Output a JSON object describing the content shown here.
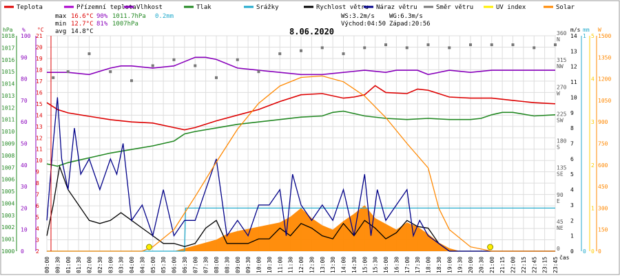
{
  "chart_data": {
    "type": "line",
    "title": "8.06.2020",
    "legend": [
      {
        "name": "Teplota",
        "color": "#dd0000"
      },
      {
        "name": "Přízemní teplota",
        "color": "#aa00cc"
      },
      {
        "name": "Vlhkost",
        "color": "#8800bb"
      },
      {
        "name": "Tlak",
        "color": "#228822"
      },
      {
        "name": "Srážky",
        "color": "#22aacc"
      },
      {
        "name": "Rychlost větru",
        "color": "#000000"
      },
      {
        "name": "Náraz větru",
        "color": "#000088"
      },
      {
        "name": "Směr větru",
        "color": "#777777"
      },
      {
        "name": "UV index",
        "color": "#ffee00"
      },
      {
        "name": "Solar",
        "color": "#ff8800"
      }
    ],
    "stats": {
      "max": {
        "label": "max",
        "temp": "16.6°C",
        "hum": "90%",
        "press": "1011.7hPa",
        "rain": "0.2mm"
      },
      "min": {
        "label": "min",
        "temp": "12.7°C",
        "hum": "81%",
        "press": "1007hPa"
      },
      "avg": {
        "label": "avg",
        "temp": "14.8°C"
      }
    },
    "wind_info": {
      "ws": "WS:3.2m/s",
      "wg": "WG:6.3m/s",
      "sunrise": "Východ:04:50",
      "sunset": "Západ:20:56"
    },
    "axes": {
      "hpa": {
        "unit": "hPa",
        "ticks": [
          "1000",
          "1001",
          "1002",
          "1003",
          "1004",
          "1005",
          "1006",
          "1007",
          "1008",
          "1009",
          "1010",
          "1011",
          "1012",
          "1013",
          "1014",
          "1015",
          "1016",
          "1017",
          "1018"
        ]
      },
      "pct": {
        "unit": "%",
        "ticks": [
          "0",
          "10",
          "20",
          "30",
          "40",
          "50",
          "60",
          "70",
          "80",
          "90",
          "100"
        ]
      },
      "degc": {
        "unit": "°C",
        "ticks": [
          "2",
          "3",
          "4",
          "5",
          "6",
          "7",
          "8",
          "9",
          "10",
          "11",
          "12",
          "13",
          "14",
          "15",
          "16",
          "17",
          "18",
          "19",
          "20",
          "21"
        ]
      },
      "dir": {
        "labels": [
          {
            "v": "360",
            "d": "N"
          },
          {
            "v": "315",
            "d": "NW"
          },
          {
            "v": "270",
            "d": "W"
          },
          {
            "v": "225",
            "d": "SW"
          },
          {
            "v": "180",
            "d": "S"
          },
          {
            "v": "135",
            "d": "SE"
          },
          {
            "v": "90",
            "d": "E"
          },
          {
            "v": "45",
            "d": "NE"
          },
          {
            "v": "0",
            "d": ""
          }
        ]
      },
      "ms": {
        "unit": "m/s",
        "ticks": [
          "0",
          "1",
          "2",
          "3",
          "4",
          "5",
          "6",
          "7",
          "8",
          "9",
          "10",
          "11",
          "12",
          "13",
          "14"
        ]
      },
      "mm": {
        "unit": "mm",
        "ticks": [
          "0",
          "1"
        ]
      },
      "uv": {
        "ticks": [
          "0",
          "1",
          "2",
          "3",
          "4",
          "5"
        ]
      },
      "solar": {
        "unit": "W",
        "ticks": [
          "0",
          "150",
          "300",
          "450",
          "600",
          "750",
          "900",
          "1050",
          "1200",
          "1350",
          "1500"
        ]
      },
      "xlabel": "čas",
      "xticks": [
        "00:00",
        "00:30",
        "01:00",
        "01:30",
        "02:00",
        "02:30",
        "03:00",
        "03:30",
        "04:00",
        "04:30",
        "05:00",
        "05:30",
        "06:00",
        "06:30",
        "07:00",
        "07:30",
        "08:00",
        "08:30",
        "09:00",
        "09:30",
        "10:00",
        "10:30",
        "11:00",
        "11:30",
        "12:00",
        "12:30",
        "13:00",
        "13:30",
        "14:00",
        "14:30",
        "15:00",
        "15:30",
        "16:00",
        "16:30",
        "17:00",
        "17:30",
        "18:00",
        "18:30",
        "19:00",
        "19:30",
        "20:00",
        "20:30",
        "21:00",
        "21:15",
        "22:00",
        "22:15",
        "22:45",
        "23:15",
        "23:45"
      ]
    },
    "series": [
      {
        "name": "Teplota",
        "unit": "°C",
        "x": [
          0,
          0.5,
          1,
          2,
          3,
          4,
          5,
          6,
          6.5,
          7,
          8,
          9,
          10,
          11,
          12,
          13,
          14,
          14.5,
          15,
          15.5,
          16,
          17,
          17.5,
          18,
          19,
          20,
          21,
          22,
          23,
          24
        ],
        "values": [
          15.1,
          14.5,
          14.2,
          13.9,
          13.6,
          13.4,
          13.3,
          12.9,
          12.7,
          12.9,
          13.5,
          14.0,
          14.5,
          15.2,
          15.8,
          15.9,
          15.5,
          15.6,
          15.8,
          16.6,
          16.0,
          15.9,
          16.3,
          16.2,
          15.6,
          15.5,
          15.5,
          15.3,
          15.1,
          15.0
        ]
      },
      {
        "name": "Vlhkost",
        "unit": "%",
        "x": [
          0,
          1,
          2,
          3,
          3.5,
          4,
          5,
          6,
          7,
          7.5,
          8,
          9,
          10,
          11,
          12,
          13,
          14,
          15,
          16,
          16.5,
          17,
          17.5,
          18,
          19,
          20,
          21,
          22,
          23,
          24
        ],
        "values": [
          83,
          83,
          82,
          85,
          86,
          86,
          85,
          86,
          90,
          90,
          89,
          85,
          84,
          83,
          82,
          82,
          83,
          84,
          83,
          84,
          84,
          84,
          82,
          84,
          83,
          84,
          84,
          84,
          84
        ]
      },
      {
        "name": "Tlak",
        "unit": "hPa",
        "x": [
          0,
          0.5,
          1,
          2,
          3,
          4,
          5,
          6,
          6.5,
          7,
          8,
          9,
          10,
          11,
          12,
          13,
          13.5,
          14,
          15,
          16,
          17,
          18,
          19,
          20,
          20.5,
          21,
          21.5,
          22,
          23,
          24
        ],
        "values": [
          1007.3,
          1007.1,
          1007.4,
          1007.8,
          1008.2,
          1008.5,
          1008.8,
          1009.2,
          1009.8,
          1010.0,
          1010.3,
          1010.6,
          1010.8,
          1011.0,
          1011.2,
          1011.3,
          1011.6,
          1011.7,
          1011.3,
          1011.1,
          1011.0,
          1011.1,
          1011.0,
          1011.0,
          1011.1,
          1011.4,
          1011.6,
          1011.6,
          1011.3,
          1011.4
        ]
      },
      {
        "name": "Srážky",
        "unit": "mm",
        "x": [
          0,
          6.5,
          6.55,
          24
        ],
        "values": [
          0,
          0,
          0.2,
          0.2
        ]
      },
      {
        "name": "Rychlost větru",
        "unit": "m/s",
        "x": [
          0,
          0.3,
          0.6,
          1,
          1.5,
          2,
          2.5,
          3,
          3.5,
          4,
          4.5,
          5,
          5.5,
          6,
          6.5,
          7,
          7.5,
          8,
          8.5,
          9,
          9.5,
          10,
          10.5,
          11,
          11.5,
          12,
          12.5,
          13,
          13.5,
          14,
          14.5,
          15,
          15.5,
          16,
          16.5,
          17,
          17.5,
          18,
          18.5,
          19,
          20,
          21,
          22,
          23,
          24
        ],
        "values": [
          1.0,
          3.0,
          5.5,
          4.0,
          3.0,
          2.0,
          1.8,
          2.0,
          2.5,
          2.0,
          1.5,
          1.0,
          0.5,
          0.5,
          0.3,
          0.5,
          1.5,
          2.0,
          0.5,
          0.5,
          0.5,
          0.8,
          0.8,
          1.5,
          1.0,
          1.8,
          1.5,
          1.0,
          0.8,
          1.8,
          1.0,
          2.0,
          1.5,
          0.8,
          1.2,
          2.0,
          1.6,
          1.5,
          0.5,
          0,
          0,
          0,
          0,
          0,
          0
        ]
      },
      {
        "name": "Náraz větru",
        "unit": "m/s",
        "x": [
          0,
          0.3,
          0.5,
          0.7,
          1,
          1.3,
          1.6,
          2,
          2.5,
          3,
          3.3,
          3.6,
          4,
          4.5,
          5,
          5.5,
          6,
          6.5,
          7,
          7.5,
          8,
          8.5,
          9,
          9.5,
          10,
          10.5,
          11,
          11.3,
          11.6,
          12,
          12.5,
          13,
          13.5,
          14,
          14.5,
          15,
          15.3,
          15.6,
          16,
          16.5,
          17,
          17.3,
          17.6,
          18,
          18.5,
          19,
          20,
          21,
          22,
          23,
          24
        ],
        "values": [
          2,
          7,
          10,
          6,
          4,
          8,
          5,
          6,
          4,
          6,
          5,
          7,
          2,
          3,
          1,
          4,
          1,
          2,
          2,
          4,
          6,
          1,
          2,
          1,
          3,
          3,
          4,
          1,
          5,
          3,
          2,
          3,
          2,
          4,
          1,
          5,
          1,
          4,
          2,
          3,
          4,
          1,
          2,
          1,
          0.5,
          0,
          0,
          0,
          0,
          0,
          0
        ]
      },
      {
        "name": "Směr větru",
        "unit": "°",
        "x": [
          0.3,
          1,
          2,
          3,
          4,
          5,
          6,
          7,
          8,
          9,
          10,
          11,
          12,
          13,
          14,
          15,
          16,
          17,
          18,
          19,
          20,
          21,
          22,
          23,
          24
        ],
        "values": [
          290,
          300,
          330,
          300,
          285,
          310,
          320,
          310,
          290,
          320,
          300,
          330,
          335,
          340,
          330,
          340,
          345,
          340,
          345,
          340,
          345,
          345,
          345,
          340,
          345
        ]
      },
      {
        "name": "Solar",
        "unit": "W/m²",
        "x": [
          0,
          4.5,
          5,
          6,
          7,
          8,
          9,
          10,
          11,
          12,
          13,
          14,
          15,
          16,
          17,
          18,
          18.5,
          19,
          20,
          21,
          22,
          23,
          24
        ],
        "values": [
          0,
          0,
          30,
          150,
          380,
          620,
          850,
          1030,
          1150,
          1210,
          1220,
          1180,
          1080,
          930,
          750,
          580,
          300,
          150,
          30,
          0,
          0,
          0,
          0
        ]
      },
      {
        "name": "UV index",
        "unit": "",
        "x": [
          4.83,
          20.93
        ],
        "values": [
          0,
          0
        ]
      }
    ],
    "solar_measured": {
      "x": [
        6,
        7,
        8,
        8.5,
        9,
        10,
        11,
        11.5,
        12,
        12.5,
        13,
        13.5,
        14,
        14.5,
        15,
        15.5,
        16,
        16.5,
        17,
        17.5,
        18,
        18.5,
        19,
        19.5
      ],
      "values": [
        0,
        40,
        80,
        120,
        140,
        170,
        200,
        240,
        300,
        230,
        180,
        150,
        210,
        260,
        320,
        230,
        190,
        150,
        200,
        170,
        120,
        60,
        20,
        0
      ]
    },
    "ranges": {
      "x": [
        0,
        24
      ],
      "temp": [
        2,
        21
      ],
      "pct": [
        0,
        100
      ],
      "hpa": [
        1000,
        1018
      ],
      "ms": [
        0,
        14
      ],
      "dir": [
        0,
        360
      ],
      "mm": [
        0,
        1
      ],
      "solar": [
        0,
        1500
      ]
    }
  }
}
